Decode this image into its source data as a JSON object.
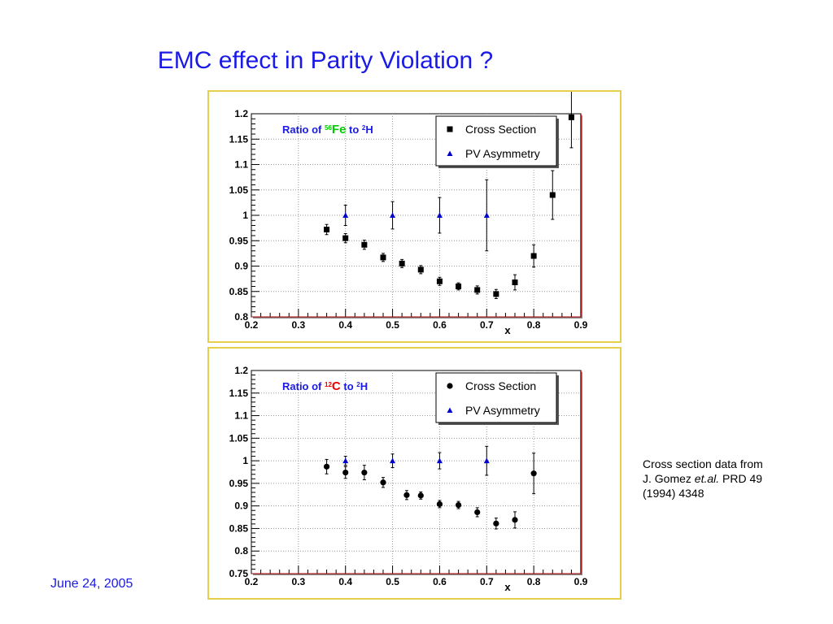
{
  "slide": {
    "title": "EMC  effect  in  Parity  Violation ?",
    "note_line1": "Cross section  data from",
    "note_line2_prefix": "J. Gomez ",
    "note_line2_etal": "et.al.",
    "note_line2_suffix": " PRD 49",
    "note_line3": "(1994) 4348",
    "date": "June 24, 2005"
  },
  "colors": {
    "title": "#1a1ae6",
    "panel_border": "#e6cf4a",
    "frame_right": "#b00000",
    "triangle": "#0000cc"
  },
  "chart_data": [
    {
      "type": "scatter",
      "label_parts": [
        "Ratio  of  ",
        "56",
        "Fe",
        "  to  ",
        "2",
        "H"
      ],
      "label_colors": [
        "#1a1ae6",
        "#00cc00",
        "#00cc00",
        "#1a1ae6",
        "#1a1ae6",
        "#1a1ae6"
      ],
      "xlabel": "x",
      "xlim": [
        0.2,
        0.9
      ],
      "ylim": [
        0.8,
        1.2
      ],
      "xticks": [
        "0.2",
        "0.3",
        "0.4",
        "0.5",
        "0.6",
        "0.7",
        "0.8",
        "0.9"
      ],
      "yticks": [
        "0.8",
        "0.85",
        "0.9",
        "0.95",
        "1",
        "1.05",
        "1.1",
        "1.15",
        "1.2"
      ],
      "grid": true,
      "legend_position": "top-right",
      "series": [
        {
          "name": "Cross Section",
          "marker": "square",
          "x": [
            0.36,
            0.4,
            0.44,
            0.48,
            0.52,
            0.56,
            0.6,
            0.64,
            0.68,
            0.72,
            0.76,
            0.8,
            0.84,
            0.88
          ],
          "y": [
            0.972,
            0.955,
            0.942,
            0.917,
            0.905,
            0.893,
            0.87,
            0.86,
            0.853,
            0.845,
            0.868,
            0.92,
            1.04,
            1.193
          ],
          "err": [
            0.01,
            0.009,
            0.009,
            0.008,
            0.008,
            0.008,
            0.008,
            0.007,
            0.008,
            0.009,
            0.015,
            0.022,
            0.048,
            0.06
          ]
        },
        {
          "name": "PV Asymmetry",
          "marker": "triangle",
          "x": [
            0.4,
            0.5,
            0.6,
            0.7
          ],
          "y": [
            1.0,
            1.0,
            1.0,
            1.0
          ],
          "err": [
            0.02,
            0.027,
            0.035,
            0.07
          ]
        }
      ]
    },
    {
      "type": "scatter",
      "label_parts": [
        "Ratio  of  ",
        "12",
        "C",
        "  to  ",
        "2",
        "H"
      ],
      "label_colors": [
        "#1a1ae6",
        "#e60000",
        "#e60000",
        "#1a1ae6",
        "#1a1ae6",
        "#1a1ae6"
      ],
      "xlabel": "x",
      "xlim": [
        0.2,
        0.9
      ],
      "ylim": [
        0.75,
        1.2
      ],
      "xticks": [
        "0.2",
        "0.3",
        "0.4",
        "0.5",
        "0.6",
        "0.7",
        "0.8",
        "0.9"
      ],
      "yticks": [
        "0.75",
        "0.8",
        "0.85",
        "0.9",
        "0.95",
        "1",
        "1.05",
        "1.1",
        "1.15",
        "1.2"
      ],
      "grid": true,
      "legend_position": "top-right",
      "series": [
        {
          "name": "Cross Section",
          "marker": "circle",
          "x": [
            0.36,
            0.4,
            0.44,
            0.48,
            0.53,
            0.56,
            0.6,
            0.64,
            0.68,
            0.72,
            0.76,
            0.8
          ],
          "y": [
            0.987,
            0.974,
            0.974,
            0.952,
            0.924,
            0.923,
            0.904,
            0.902,
            0.886,
            0.861,
            0.869,
            0.972
          ],
          "err": [
            0.016,
            0.013,
            0.016,
            0.011,
            0.01,
            0.008,
            0.008,
            0.008,
            0.01,
            0.012,
            0.018,
            0.045
          ]
        },
        {
          "name": "PV Asymmetry",
          "marker": "triangle",
          "x": [
            0.4,
            0.5,
            0.6,
            0.7
          ],
          "y": [
            1.0,
            1.0,
            1.0,
            1.0
          ],
          "err": [
            0.01,
            0.015,
            0.018,
            0.032
          ]
        }
      ]
    }
  ]
}
